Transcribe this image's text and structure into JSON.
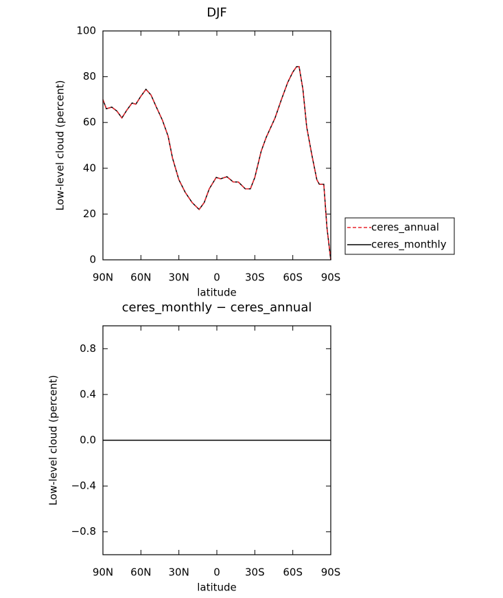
{
  "chart_data": [
    {
      "type": "line",
      "title": "DJF",
      "x_label": "latitude",
      "y_label": "Low-level cloud (percent)",
      "x": [
        90,
        87.3,
        83,
        79,
        75,
        71,
        67,
        64,
        60,
        56,
        52,
        48,
        43,
        38.5,
        35,
        30,
        25,
        19.5,
        14,
        10,
        6,
        0.5,
        -3,
        -8,
        -13,
        -17,
        -22.5,
        -26.5,
        -30,
        -35,
        -39,
        -46,
        -51,
        -56,
        -60,
        -63,
        -65,
        -68,
        -71,
        -75,
        -79,
        -81,
        -84.5,
        -87,
        -90
      ],
      "series": [
        {
          "name": "ceres_monthly",
          "color": "#000000",
          "dash": false,
          "values": [
            70,
            66,
            66.7,
            65,
            62,
            65.5,
            68.5,
            68,
            71.5,
            74.5,
            72,
            67,
            61,
            54,
            44.4,
            35,
            29.5,
            25,
            22,
            25,
            31,
            36,
            35.4,
            36.3,
            34,
            34,
            31,
            31,
            36,
            47.4,
            53.5,
            62,
            70,
            77.5,
            82,
            84.4,
            84.4,
            74.5,
            58,
            46,
            35,
            33,
            33,
            14,
            0
          ]
        },
        {
          "name": "ceres_annual",
          "color": "#e8242c",
          "dash": true,
          "values": [
            70,
            66,
            66.7,
            65,
            62,
            65.5,
            68.5,
            68,
            71.5,
            74.5,
            72,
            67,
            61,
            54,
            44.4,
            35,
            29.5,
            25,
            22,
            25,
            31,
            36,
            35.4,
            36.3,
            34,
            34,
            31,
            31,
            36,
            47.4,
            53.5,
            62,
            70,
            77.5,
            82,
            84.4,
            84.4,
            74.5,
            58,
            46,
            35,
            33,
            33,
            14,
            0
          ]
        }
      ],
      "xlim": [
        90,
        -90
      ],
      "xticks": [
        {
          "value": 90,
          "label": "90N"
        },
        {
          "value": 60,
          "label": "60N"
        },
        {
          "value": 30,
          "label": "30N"
        },
        0,
        {
          "value": -30,
          "label": "30S"
        },
        {
          "value": -60,
          "label": "60S"
        },
        {
          "value": -90,
          "label": "90S"
        }
      ],
      "ylim": [
        0,
        100
      ],
      "yticks": [
        0,
        20,
        40,
        60,
        80,
        100
      ],
      "legend": "right"
    },
    {
      "type": "line",
      "title": "ceres_monthly − ceres_annual",
      "x_label": "latitude",
      "y_label": "Low-level cloud (percent)",
      "x": [
        90,
        -90
      ],
      "series": [
        {
          "color": "#000000",
          "dash": false,
          "values": [
            0,
            0
          ]
        }
      ],
      "xlim": [
        90,
        -90
      ],
      "xticks": [
        {
          "value": 90,
          "label": "90N"
        },
        {
          "value": 60,
          "label": "60N"
        },
        {
          "value": 30,
          "label": "30N"
        },
        0,
        {
          "value": -30,
          "label": "30S"
        },
        {
          "value": -60,
          "label": "60S"
        },
        {
          "value": -90,
          "label": "90S"
        }
      ],
      "ylim": [
        -1,
        1
      ],
      "yticks": [
        {
          "value": -0.8,
          "label": "−0.8"
        },
        {
          "value": -0.4,
          "label": "−0.4"
        },
        {
          "value": 0,
          "label": "0.0"
        },
        0.4,
        0.8
      ]
    }
  ]
}
